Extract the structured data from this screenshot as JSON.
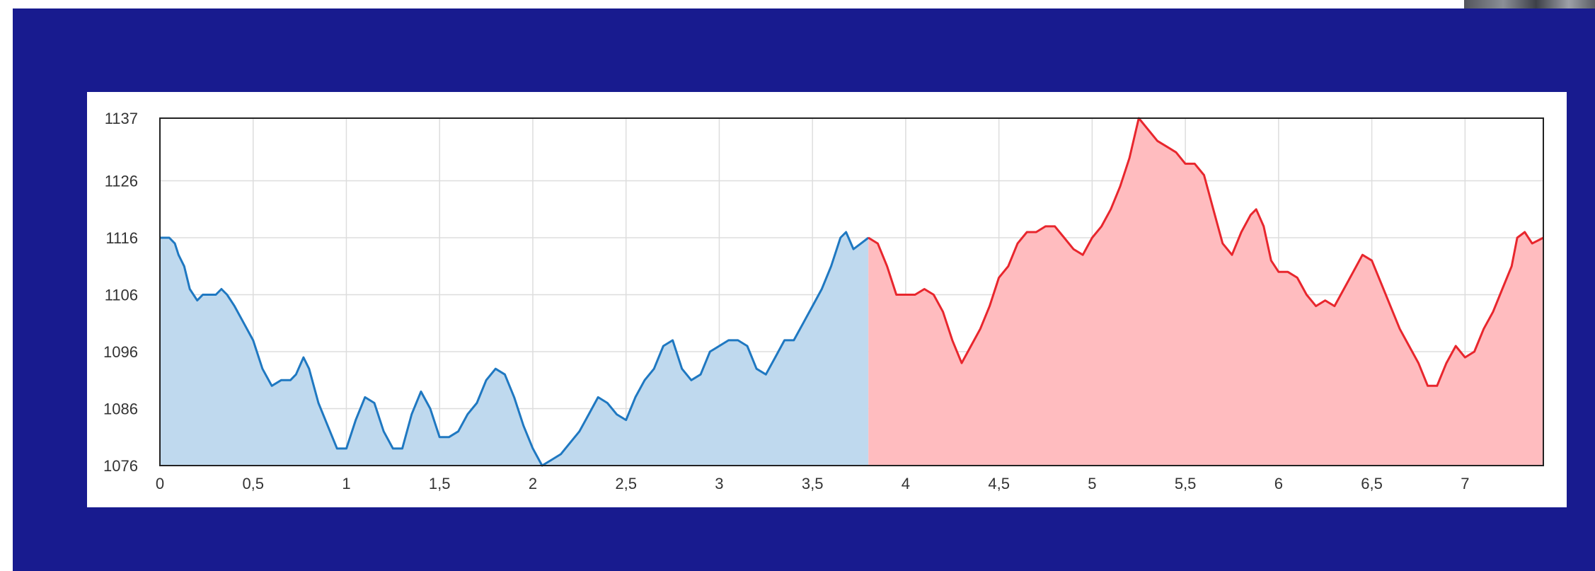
{
  "colors": {
    "background": "#181b8f",
    "card": "#ffffff",
    "grid": "#dddddd",
    "axis": "#222222",
    "completed_line": "#1f78c1",
    "completed_fill": "#bfd9ee",
    "remaining_line": "#e8262d",
    "remaining_fill": "#ffbcbf"
  },
  "chart_data": {
    "type": "area",
    "title": "",
    "xlabel": "",
    "ylabel": "",
    "xlim": [
      0,
      7.42
    ],
    "ylim": [
      1076,
      1137
    ],
    "grid": true,
    "legend": "none",
    "x_ticks": [
      "0",
      "0,5",
      "1",
      "1,5",
      "2",
      "2,5",
      "3",
      "3,5",
      "4",
      "4,5",
      "5",
      "5,5",
      "6",
      "6,5",
      "7"
    ],
    "y_ticks": [
      "1137",
      "1126",
      "1116",
      "1106",
      "1096",
      "1086",
      "1076"
    ],
    "split_x": 3.8,
    "series": [
      {
        "values": [
          [
            0,
            1116
          ],
          [
            0.05,
            1116
          ],
          [
            0.08,
            1115
          ],
          [
            0.1,
            1113
          ],
          [
            0.13,
            1111
          ],
          [
            0.16,
            1107
          ],
          [
            0.2,
            1105
          ],
          [
            0.23,
            1106
          ],
          [
            0.3,
            1106
          ],
          [
            0.33,
            1107
          ],
          [
            0.36,
            1106
          ],
          [
            0.4,
            1104
          ],
          [
            0.45,
            1101
          ],
          [
            0.5,
            1098
          ],
          [
            0.55,
            1093
          ],
          [
            0.6,
            1090
          ],
          [
            0.65,
            1091
          ],
          [
            0.7,
            1091
          ],
          [
            0.73,
            1092
          ],
          [
            0.77,
            1095
          ],
          [
            0.8,
            1093
          ],
          [
            0.85,
            1087
          ],
          [
            0.9,
            1083
          ],
          [
            0.95,
            1079
          ],
          [
            1.0,
            1079
          ],
          [
            1.05,
            1084
          ],
          [
            1.1,
            1088
          ],
          [
            1.15,
            1087
          ],
          [
            1.2,
            1082
          ],
          [
            1.25,
            1079
          ],
          [
            1.3,
            1079
          ],
          [
            1.35,
            1085
          ],
          [
            1.4,
            1089
          ],
          [
            1.45,
            1086
          ],
          [
            1.5,
            1081
          ],
          [
            1.55,
            1081
          ],
          [
            1.6,
            1082
          ],
          [
            1.65,
            1085
          ],
          [
            1.7,
            1087
          ],
          [
            1.75,
            1091
          ],
          [
            1.8,
            1093
          ],
          [
            1.85,
            1092
          ],
          [
            1.9,
            1088
          ],
          [
            1.95,
            1083
          ],
          [
            2.0,
            1079
          ],
          [
            2.05,
            1076
          ],
          [
            2.1,
            1077
          ],
          [
            2.15,
            1078
          ],
          [
            2.2,
            1080
          ],
          [
            2.25,
            1082
          ],
          [
            2.3,
            1085
          ],
          [
            2.35,
            1088
          ],
          [
            2.4,
            1087
          ],
          [
            2.45,
            1085
          ],
          [
            2.5,
            1084
          ],
          [
            2.55,
            1088
          ],
          [
            2.6,
            1091
          ],
          [
            2.65,
            1093
          ],
          [
            2.7,
            1097
          ],
          [
            2.75,
            1098
          ],
          [
            2.8,
            1093
          ],
          [
            2.85,
            1091
          ],
          [
            2.9,
            1092
          ],
          [
            2.95,
            1096
          ],
          [
            3.0,
            1097
          ],
          [
            3.05,
            1098
          ],
          [
            3.1,
            1098
          ],
          [
            3.15,
            1097
          ],
          [
            3.2,
            1093
          ],
          [
            3.25,
            1092
          ],
          [
            3.3,
            1095
          ],
          [
            3.35,
            1098
          ],
          [
            3.4,
            1098
          ],
          [
            3.45,
            1101
          ],
          [
            3.5,
            1104
          ],
          [
            3.55,
            1107
          ],
          [
            3.6,
            1111
          ],
          [
            3.65,
            1116
          ],
          [
            3.68,
            1117
          ],
          [
            3.72,
            1114
          ],
          [
            3.76,
            1115
          ],
          [
            3.8,
            1116
          ]
        ]
      },
      {
        "values": [
          [
            3.8,
            1116
          ],
          [
            3.85,
            1115
          ],
          [
            3.9,
            1111
          ],
          [
            3.95,
            1106
          ],
          [
            4.0,
            1106
          ],
          [
            4.05,
            1106
          ],
          [
            4.1,
            1107
          ],
          [
            4.15,
            1106
          ],
          [
            4.2,
            1103
          ],
          [
            4.25,
            1098
          ],
          [
            4.3,
            1094
          ],
          [
            4.35,
            1097
          ],
          [
            4.4,
            1100
          ],
          [
            4.45,
            1104
          ],
          [
            4.5,
            1109
          ],
          [
            4.55,
            1111
          ],
          [
            4.6,
            1115
          ],
          [
            4.65,
            1117
          ],
          [
            4.7,
            1117
          ],
          [
            4.75,
            1118
          ],
          [
            4.8,
            1118
          ],
          [
            4.85,
            1116
          ],
          [
            4.9,
            1114
          ],
          [
            4.95,
            1113
          ],
          [
            5.0,
            1116
          ],
          [
            5.05,
            1118
          ],
          [
            5.1,
            1121
          ],
          [
            5.15,
            1125
          ],
          [
            5.2,
            1130
          ],
          [
            5.25,
            1137
          ],
          [
            5.3,
            1135
          ],
          [
            5.35,
            1133
          ],
          [
            5.4,
            1132
          ],
          [
            5.45,
            1131
          ],
          [
            5.5,
            1129
          ],
          [
            5.55,
            1129
          ],
          [
            5.6,
            1127
          ],
          [
            5.65,
            1121
          ],
          [
            5.7,
            1115
          ],
          [
            5.75,
            1113
          ],
          [
            5.8,
            1117
          ],
          [
            5.85,
            1120
          ],
          [
            5.88,
            1121
          ],
          [
            5.92,
            1118
          ],
          [
            5.96,
            1112
          ],
          [
            6.0,
            1110
          ],
          [
            6.05,
            1110
          ],
          [
            6.1,
            1109
          ],
          [
            6.15,
            1106
          ],
          [
            6.2,
            1104
          ],
          [
            6.25,
            1105
          ],
          [
            6.3,
            1104
          ],
          [
            6.35,
            1107
          ],
          [
            6.4,
            1110
          ],
          [
            6.45,
            1113
          ],
          [
            6.5,
            1112
          ],
          [
            6.55,
            1108
          ],
          [
            6.6,
            1104
          ],
          [
            6.65,
            1100
          ],
          [
            6.7,
            1097
          ],
          [
            6.75,
            1094
          ],
          [
            6.8,
            1090
          ],
          [
            6.85,
            1090
          ],
          [
            6.9,
            1094
          ],
          [
            6.95,
            1097
          ],
          [
            7.0,
            1095
          ],
          [
            7.05,
            1096
          ],
          [
            7.1,
            1100
          ],
          [
            7.15,
            1103
          ],
          [
            7.2,
            1107
          ],
          [
            7.25,
            1111
          ],
          [
            7.28,
            1116
          ],
          [
            7.32,
            1117
          ],
          [
            7.36,
            1115
          ],
          [
            7.42,
            1116
          ]
        ]
      }
    ]
  }
}
